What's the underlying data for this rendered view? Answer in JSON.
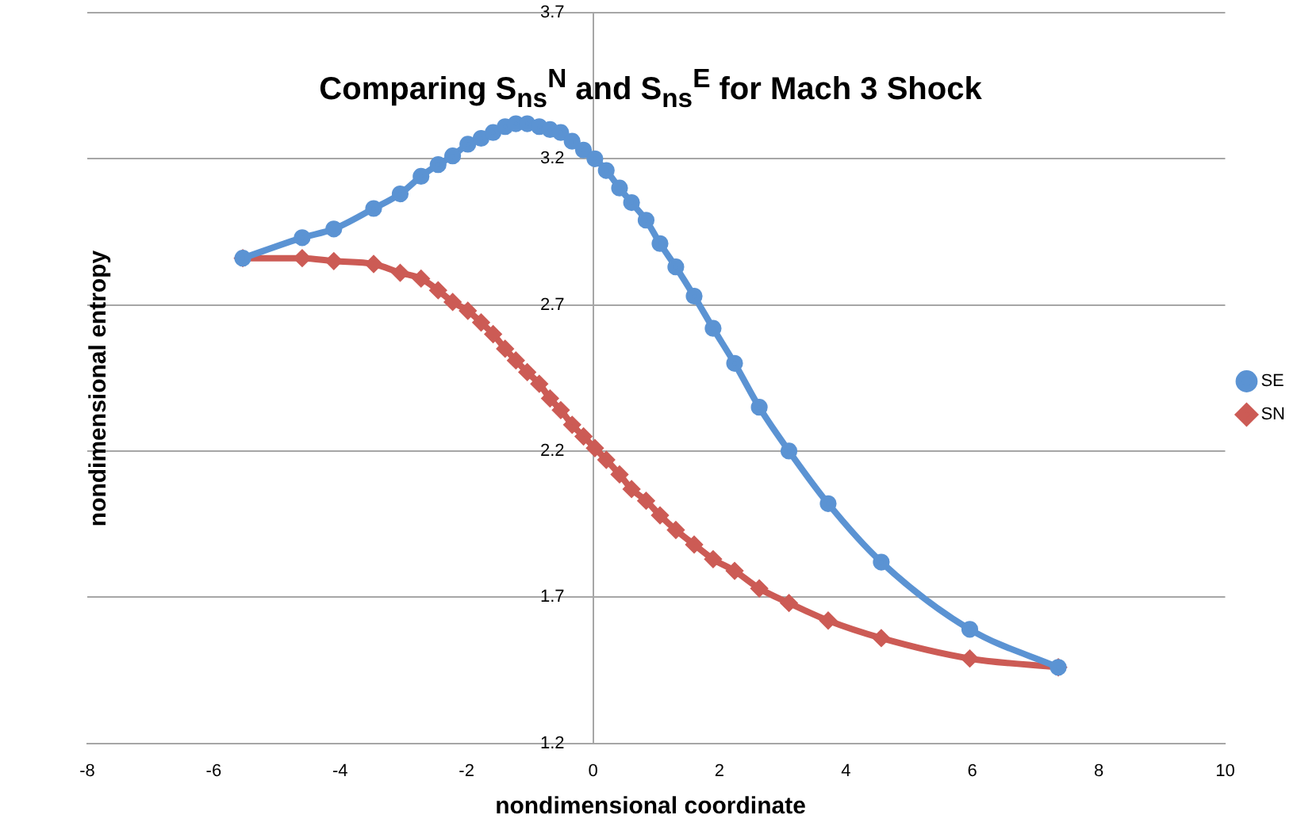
{
  "chart_data": {
    "type": "line",
    "title": "Comparing S$_{ns}$$^{N}$ and S$_{ns}$$^{E}$ for Mach 3 Shock",
    "xlabel": "nondimensional coordinate",
    "ylabel": "nondimensional entropy",
    "x": [
      -5.54,
      -4.6,
      -4.1,
      -3.47,
      -3.05,
      -2.72,
      -2.45,
      -2.22,
      -1.98,
      -1.77,
      -1.58,
      -1.39,
      -1.22,
      -1.04,
      -0.85,
      -0.68,
      -0.51,
      -0.33,
      -0.15,
      0.03,
      0.21,
      0.42,
      0.61,
      0.84,
      1.06,
      1.31,
      1.6,
      1.9,
      2.24,
      2.63,
      3.1,
      3.72,
      4.56,
      5.96,
      7.36
    ],
    "series": [
      {
        "name": "SE",
        "color": "#5b93d3",
        "marker": "circle",
        "values": [
          2.86,
          2.93,
          2.96,
          3.03,
          3.08,
          3.14,
          3.18,
          3.21,
          3.25,
          3.27,
          3.29,
          3.31,
          3.32,
          3.32,
          3.31,
          3.3,
          3.29,
          3.26,
          3.23,
          3.2,
          3.16,
          3.1,
          3.05,
          2.99,
          2.91,
          2.83,
          2.73,
          2.62,
          2.5,
          2.35,
          2.2,
          2.02,
          1.82,
          1.59,
          1.46
        ]
      },
      {
        "name": "SN",
        "color": "#cc5b55",
        "marker": "diamond",
        "values": [
          2.86,
          2.86,
          2.85,
          2.84,
          2.81,
          2.79,
          2.75,
          2.71,
          2.68,
          2.64,
          2.6,
          2.55,
          2.51,
          2.47,
          2.43,
          2.38,
          2.34,
          2.29,
          2.25,
          2.21,
          2.17,
          2.12,
          2.07,
          2.03,
          1.98,
          1.93,
          1.88,
          1.83,
          1.79,
          1.73,
          1.68,
          1.62,
          1.56,
          1.49,
          1.46
        ]
      }
    ],
    "xlim": [
      -8,
      10
    ],
    "xticks": [
      -8,
      -6,
      -4,
      -2,
      0,
      2,
      4,
      6,
      8,
      10
    ],
    "ylim": [
      1.2,
      3.7
    ],
    "yticks": [
      1.2,
      1.7,
      2.2,
      2.7,
      3.2,
      3.7
    ],
    "grid": "y",
    "legend": "right",
    "line_style": "solid"
  }
}
